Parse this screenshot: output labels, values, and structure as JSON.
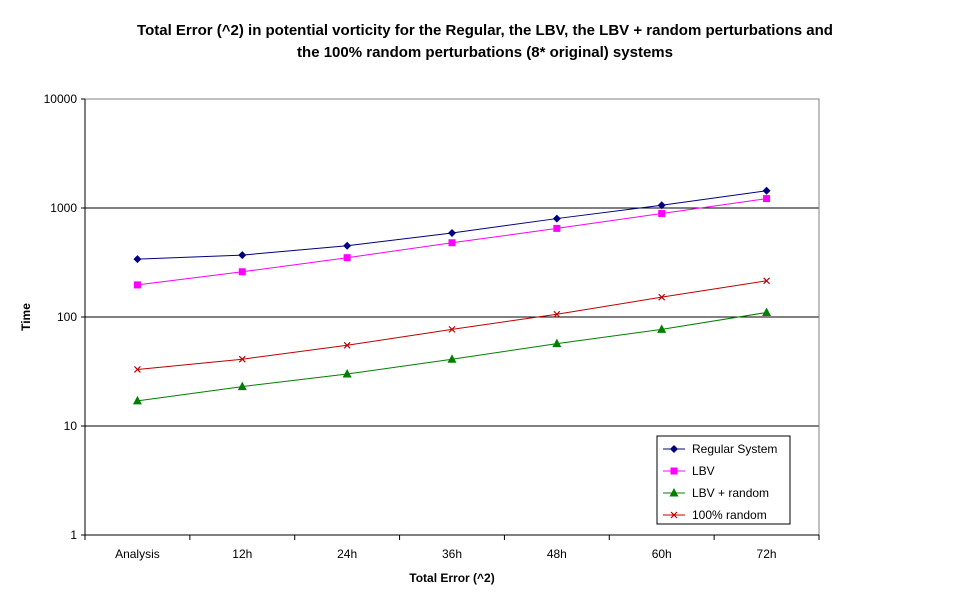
{
  "chart_data": {
    "type": "line",
    "title_line1": "Total Error (^2) in potential vorticity for the Regular, the LBV, the LBV + random perturbations and",
    "title_line2": "the 100% random perturbations (8* original) systems",
    "xlabel": "Total Error (^2)",
    "ylabel": "Time",
    "yscale": "log",
    "ylim": [
      1,
      10000
    ],
    "yticks": [
      1,
      10,
      100,
      1000,
      10000
    ],
    "ytick_labels": [
      "1",
      "10",
      "100",
      "1000",
      "10000"
    ],
    "grid": "horizontal major gridlines",
    "legend_position": "bottom-right",
    "categories": [
      "Analysis",
      "12h",
      "24h",
      "36h",
      "48h",
      "60h",
      "72h"
    ],
    "series": [
      {
        "name": "Regular System",
        "color": "#000080",
        "marker": "diamond",
        "values": [
          340,
          370,
          450,
          590,
          800,
          1060,
          1440
        ]
      },
      {
        "name": "LBV",
        "color": "#ff00ff",
        "marker": "square",
        "values": [
          197,
          260,
          350,
          480,
          650,
          890,
          1220
        ]
      },
      {
        "name": "LBV + random",
        "color": "#008000",
        "marker": "triangle",
        "values": [
          17,
          23,
          30,
          41,
          57,
          77,
          110
        ]
      },
      {
        "name": "100% random",
        "color": "#c00000",
        "marker": "x",
        "values": [
          33,
          41,
          55,
          77,
          106,
          152,
          215
        ]
      }
    ]
  }
}
